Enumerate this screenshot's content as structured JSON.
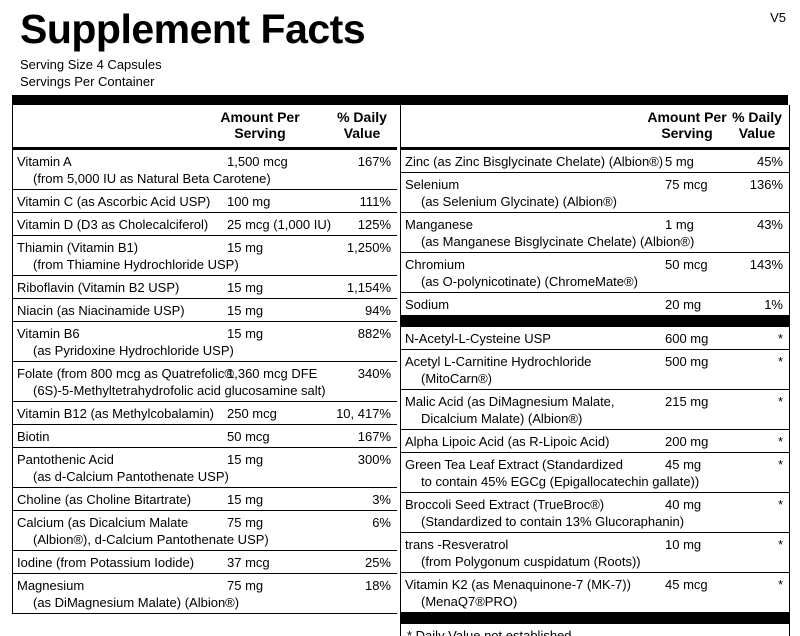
{
  "title": "Supplement Facts",
  "version": "V5",
  "serving_size": "Serving Size  4 Capsules",
  "servings_per_container": "Servings Per Container",
  "left": {
    "headers": [
      "Amount Per Serving",
      "% Daily Value"
    ],
    "rows": [
      {
        "name": "Vitamin A",
        "detail": "(from 5,000 IU as Natural Beta Carotene)",
        "amount": "1,500 mcg",
        "dv": "167%"
      },
      {
        "name": "Vitamin C (as Ascorbic Acid USP)",
        "amount": "100 mg",
        "dv": "111%"
      },
      {
        "name": "Vitamin D (D3 as Cholecalciferol)",
        "amount": "25 mcg (1,000 IU)",
        "dv": "125%"
      },
      {
        "name": "Thiamin (Vitamin B1)",
        "detail": "(from Thiamine Hydrochloride USP)",
        "amount": "15 mg",
        "dv": "1,250%"
      },
      {
        "name": "Riboflavin (Vitamin B2 USP)",
        "amount": "15 mg",
        "dv": "1,154%"
      },
      {
        "name": "Niacin (as Niacinamide USP)",
        "amount": "15 mg",
        "dv": "94%"
      },
      {
        "name": "Vitamin B6",
        "detail": "(as Pyridoxine Hydrochloride USP)",
        "amount": "15 mg",
        "dv": "882%"
      },
      {
        "name": "Folate (from 800 mcg as Quatrefolic®",
        "detail": "(6S)-5-Methyltetrahydrofolic acid glucosamine salt)",
        "amount": "1,360 mcg DFE",
        "dv": "340%"
      },
      {
        "name": "Vitamin B12 (as Methylcobalamin)",
        "amount": "250 mcg",
        "dv": "10, 417%"
      },
      {
        "name": "Biotin",
        "amount": "50 mcg",
        "dv": "167%"
      },
      {
        "name": "Pantothenic Acid",
        "detail": "(as d-Calcium Pantothenate USP)",
        "amount": "15 mg",
        "dv": "300%"
      },
      {
        "name": "Choline (as Choline Bitartrate)",
        "amount": "15 mg",
        "dv": "3%"
      },
      {
        "name": "Calcium (as Dicalcium Malate",
        "detail": "(Albion®), d-Calcium Pantothenate USP)",
        "amount": "75 mg",
        "dv": "6%"
      },
      {
        "name": "Iodine (from Potassium Iodide)",
        "amount": "37 mcg",
        "dv": "25%"
      },
      {
        "name": "Magnesium",
        "detail": "(as DiMagnesium Malate) (Albion®)",
        "amount": "75 mg",
        "dv": "18%"
      }
    ]
  },
  "right": {
    "headers": [
      "Amount Per Serving",
      "% Daily Value"
    ],
    "rows": [
      {
        "name": "Zinc (as Zinc Bisglycinate Chelate) (Albion®)",
        "amount": "5 mg",
        "dv": "45%"
      },
      {
        "name": "Selenium",
        "detail": "(as Selenium Glycinate) (Albion®)",
        "amount": "75 mcg",
        "dv": "136%"
      },
      {
        "name": "Manganese",
        "detail": "(as Manganese Bisglycinate Chelate) (Albion®)",
        "amount": "1 mg",
        "dv": "43%"
      },
      {
        "name": "Chromium",
        "detail": "(as O-polynicotinate) (ChromeMate®)",
        "amount": "50 mcg",
        "dv": "143%"
      },
      {
        "name": "Sodium",
        "amount": "20 mg",
        "dv": "1%"
      }
    ],
    "rows_other": [
      {
        "name": "N-Acetyl-L-Cysteine USP",
        "amount": "600 mg",
        "dv": "*"
      },
      {
        "name": "Acetyl L-Carnitine Hydrochloride",
        "detail": "(MitoCarn®)",
        "amount": "500 mg",
        "dv": "*"
      },
      {
        "name": "Malic Acid (as DiMagnesium Malate,",
        "detail": "Dicalcium Malate) (Albion®)",
        "amount": "215 mg",
        "dv": "*"
      },
      {
        "name": "Alpha Lipoic Acid (as R-Lipoic Acid)",
        "amount": "200 mg",
        "dv": "*"
      },
      {
        "name": "Green Tea Leaf Extract (Standardized",
        "detail": "to contain 45% EGCg (Epigallocatechin gallate))",
        "amount": "45 mg",
        "dv": "*"
      },
      {
        "name": "Broccoli Seed Extract (TrueBroc®)",
        "detail": "(Standardized to contain 13% Glucoraphanin)",
        "amount": "40 mg",
        "dv": "*"
      },
      {
        "name": "trans -Resveratrol",
        "detail": "(from Polygonum cuspidatum (Roots))",
        "amount": "10 mg",
        "dv": "*"
      },
      {
        "name": "Vitamin K2 (as Menaquinone-7 (MK-7))",
        "detail": "(MenaQ7®PRO)",
        "amount": "45 mcg",
        "dv": "*"
      }
    ],
    "footnote": "*  Daily Value not established."
  }
}
